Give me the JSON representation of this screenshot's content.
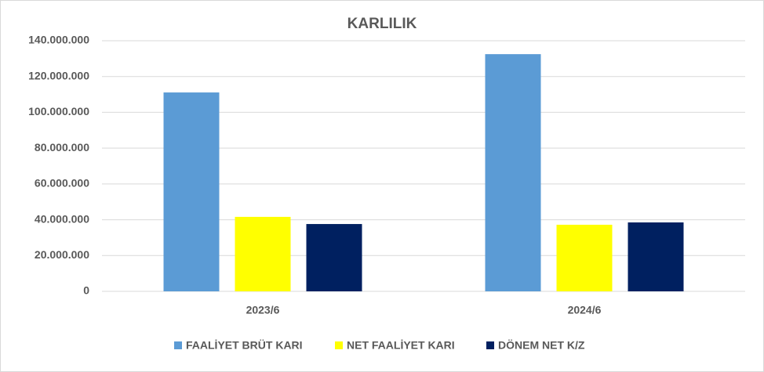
{
  "chart_data": {
    "type": "bar",
    "title": "KARLILIK",
    "categories": [
      "2023/6",
      "2024/6"
    ],
    "series": [
      {
        "name": "FAALİYET BRÜT KARI",
        "color": "#5b9bd5",
        "values": [
          111100000,
          132500000
        ]
      },
      {
        "name": "NET FAALİYET KARI",
        "color": "#ffff00",
        "values": [
          41600000,
          37200000
        ]
      },
      {
        "name": "DÖNEM NET K/Z",
        "color": "#002060",
        "values": [
          37600000,
          38500000
        ]
      }
    ],
    "ylim": [
      0,
      140000000
    ],
    "yticks": [
      0,
      {
        "value": 20000000,
        "label": "20.000.000"
      },
      {
        "value": 40000000,
        "label": "40.000.000"
      },
      {
        "value": 60000000,
        "label": "60.000.000"
      },
      {
        "value": 80000000,
        "label": "80.000.000"
      },
      {
        "value": 100000000,
        "label": "100.000.000"
      },
      {
        "value": 120000000,
        "label": "120.000.000"
      },
      {
        "value": 140000000,
        "label": "140.000.000"
      }
    ],
    "grid": true,
    "legend": "bottom"
  }
}
